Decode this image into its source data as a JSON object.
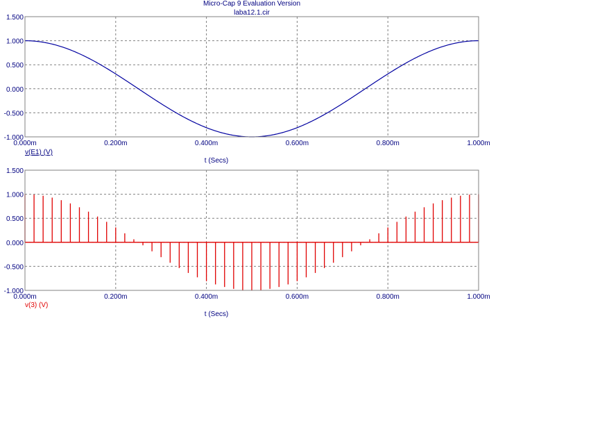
{
  "header": {
    "title": "Micro-Cap 9 Evaluation Version",
    "subtitle": "laba12.1.cir"
  },
  "chart_data": [
    {
      "type": "line",
      "series": [
        {
          "name": "v(E1) (V)",
          "color": "#0000a0",
          "function": "cos(2*pi*1000*t)"
        }
      ],
      "xlabel": "t (Secs)",
      "xlim": [
        0,
        0.001
      ],
      "ylim": [
        -1.0,
        1.5
      ],
      "xticks": [
        0,
        0.0002,
        0.0004,
        0.0006,
        0.0008,
        0.001
      ],
      "xtick_labels": [
        "0.000m",
        "0.200m",
        "0.400m",
        "0.600m",
        "0.800m",
        "1.000m"
      ],
      "yticks": [
        1.5,
        1.0,
        0.5,
        0.0,
        -0.5,
        -1.0
      ],
      "ytick_labels": [
        "1.500",
        "1.000",
        "0.500",
        "0.000",
        "-0.500",
        "-1.000"
      ],
      "grid": true,
      "legend": "bottom-left"
    },
    {
      "type": "bar",
      "series": [
        {
          "name": "v(3) (V)",
          "color": "#e00000",
          "function": "sampled cos(2*pi*1000*t), 0.02m sample interval, 51 samples"
        }
      ],
      "xlabel": "t (Secs)",
      "xlim": [
        0,
        0.001
      ],
      "ylim": [
        -1.0,
        1.5
      ],
      "xticks": [
        0,
        0.0002,
        0.0004,
        0.0006,
        0.0008,
        0.001
      ],
      "xtick_labels": [
        "0.000m",
        "0.200m",
        "0.400m",
        "0.600m",
        "0.800m",
        "1.000m"
      ],
      "yticks": [
        1.5,
        1.0,
        0.5,
        0.0,
        -0.5,
        -1.0
      ],
      "ytick_labels": [
        "1.500",
        "1.000",
        "0.500",
        "0.000",
        "-0.500",
        "-1.000"
      ],
      "grid": true,
      "legend": "bottom-left"
    }
  ]
}
